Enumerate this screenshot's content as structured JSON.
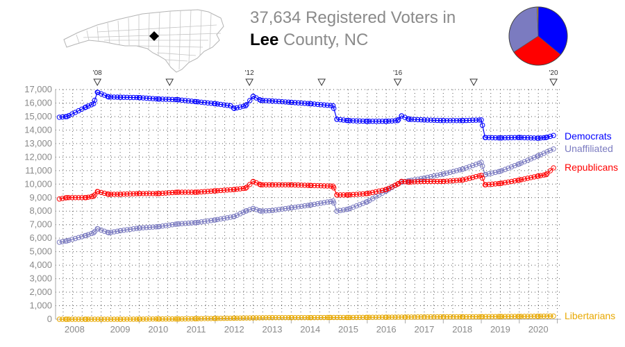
{
  "title": {
    "line1": "37,634 Registered Voters in",
    "county": "Lee",
    "line2_rest": " County, NC"
  },
  "map": {
    "icon": "north-carolina-counties-map-icon",
    "marker": "lee-county-marker-icon"
  },
  "pie": {
    "slices": [
      {
        "name": "Democrats",
        "value": 13550,
        "color": "#0000ff"
      },
      {
        "name": "Republicans",
        "value": 11200,
        "color": "#ff0000"
      },
      {
        "name": "Unaffiliated",
        "value": 12650,
        "color": "#7b7bc0"
      },
      {
        "name": "Libertarians",
        "value": 234,
        "color": "#e8a800"
      }
    ]
  },
  "chart_data": {
    "type": "line",
    "xlim": [
      2007.3,
      2020.6
    ],
    "ylim": [
      0,
      17000
    ],
    "y_ticks": [
      0,
      1000,
      2000,
      3000,
      4000,
      5000,
      6000,
      7000,
      8000,
      9000,
      10000,
      11000,
      12000,
      13000,
      14000,
      15000,
      16000,
      17000
    ],
    "y_tick_labels": [
      "0",
      "1,000",
      "2,000",
      "3,000",
      "4,000",
      "5,000",
      "6,000",
      "7,000",
      "8,000",
      "9,000",
      "10,000",
      "11,000",
      "12,000",
      "13,000",
      "14,000",
      "15,000",
      "16,000",
      "17,000"
    ],
    "x_tick_labels": [
      {
        "label": "2008",
        "x": 2007.8
      },
      {
        "label": "2009",
        "x": 2009.0
      },
      {
        "label": "2010",
        "x": 2010.0
      },
      {
        "label": "2011",
        "x": 2011.0
      },
      {
        "label": "2012",
        "x": 2012.0
      },
      {
        "label": "2013",
        "x": 2013.0
      },
      {
        "label": "2014",
        "x": 2014.0
      },
      {
        "label": "2015",
        "x": 2015.0
      },
      {
        "label": "2016",
        "x": 2016.0
      },
      {
        "label": "2017",
        "x": 2017.0
      },
      {
        "label": "2018",
        "x": 2018.0
      },
      {
        "label": "2019",
        "x": 2019.0
      },
      {
        "label": "2020",
        "x": 2020.0
      }
    ],
    "election_markers": [
      {
        "label": "'08",
        "x": 2008.4
      },
      {
        "label": "",
        "x": 2010.3
      },
      {
        "label": "'12",
        "x": 2012.4
      },
      {
        "label": "",
        "x": 2014.3
      },
      {
        "label": "'16",
        "x": 2016.3
      },
      {
        "label": "",
        "x": 2018.3
      },
      {
        "label": "'20",
        "x": 2020.4
      }
    ],
    "grid": true,
    "legend_placement": "right",
    "series": [
      {
        "name": "Democrats",
        "color": "#0000ff",
        "x": [
          2007.4,
          2007.6,
          2008.1,
          2008.3,
          2008.4,
          2008.7,
          2009.0,
          2009.5,
          2010.0,
          2010.5,
          2011.0,
          2011.5,
          2011.9,
          2012.0,
          2012.3,
          2012.5,
          2012.7,
          2013.0,
          2013.5,
          2014.0,
          2014.6,
          2014.7,
          2015.0,
          2015.5,
          2016.0,
          2016.3,
          2016.4,
          2016.6,
          2017.0,
          2017.5,
          2018.0,
          2018.5,
          2018.6,
          2019.0,
          2019.5,
          2020.0,
          2020.2,
          2020.4
        ],
        "y": [
          14950,
          15000,
          15700,
          15950,
          16800,
          16450,
          16430,
          16400,
          16300,
          16250,
          16100,
          15950,
          15800,
          15600,
          15800,
          16500,
          16200,
          16150,
          16050,
          15950,
          15800,
          14800,
          14700,
          14650,
          14650,
          14700,
          15050,
          14800,
          14750,
          14700,
          14700,
          14750,
          13450,
          13420,
          13450,
          13400,
          13450,
          13600
        ]
      },
      {
        "name": "Unaffiliated",
        "color": "#7b7bc0",
        "x": [
          2007.4,
          2007.6,
          2008.1,
          2008.3,
          2008.4,
          2008.7,
          2009.0,
          2009.5,
          2010.0,
          2010.5,
          2011.0,
          2011.5,
          2012.0,
          2012.3,
          2012.5,
          2012.7,
          2013.0,
          2013.5,
          2014.0,
          2014.6,
          2014.7,
          2015.0,
          2015.5,
          2016.0,
          2016.3,
          2016.4,
          2016.6,
          2017.0,
          2017.5,
          2018.0,
          2018.5,
          2018.6,
          2019.0,
          2019.5,
          2020.0,
          2020.4
        ],
        "y": [
          5700,
          5800,
          6200,
          6400,
          6700,
          6400,
          6550,
          6750,
          6850,
          7050,
          7150,
          7350,
          7600,
          8000,
          8200,
          8000,
          8050,
          8250,
          8450,
          8750,
          8000,
          8150,
          8700,
          9500,
          10000,
          10150,
          10250,
          10450,
          10750,
          11100,
          11600,
          10700,
          10950,
          11500,
          12100,
          12600
        ]
      },
      {
        "name": "Republicans",
        "color": "#ff0000",
        "x": [
          2007.4,
          2007.6,
          2008.1,
          2008.3,
          2008.4,
          2008.7,
          2009.0,
          2009.5,
          2010.0,
          2010.5,
          2011.0,
          2011.5,
          2012.0,
          2012.3,
          2012.5,
          2012.7,
          2013.0,
          2013.5,
          2014.0,
          2014.6,
          2014.7,
          2015.0,
          2015.5,
          2016.0,
          2016.3,
          2016.4,
          2016.6,
          2017.0,
          2017.5,
          2018.0,
          2018.5,
          2018.6,
          2019.0,
          2019.5,
          2020.0,
          2020.2,
          2020.4
        ],
        "y": [
          8900,
          9000,
          9000,
          9100,
          9450,
          9250,
          9250,
          9300,
          9300,
          9400,
          9400,
          9500,
          9600,
          9700,
          10200,
          9950,
          9950,
          9950,
          9900,
          9850,
          9200,
          9200,
          9300,
          9600,
          10000,
          10200,
          10150,
          10200,
          10200,
          10300,
          10650,
          9950,
          10050,
          10300,
          10600,
          10700,
          11200
        ]
      },
      {
        "name": "Libertarians",
        "color": "#e8a800",
        "x": [
          2007.4,
          2007.6,
          2008.1,
          2008.5,
          2009.0,
          2009.5,
          2010.0,
          2010.5,
          2011.0,
          2011.5,
          2012.0,
          2012.5,
          2013.0,
          2013.5,
          2014.0,
          2014.5,
          2015.0,
          2015.5,
          2016.0,
          2016.5,
          2017.0,
          2017.5,
          2018.0,
          2018.5,
          2019.0,
          2019.5,
          2020.0,
          2020.4
        ],
        "y": [
          0,
          0,
          0,
          0,
          0,
          10,
          20,
          20,
          40,
          60,
          80,
          100,
          120,
          120,
          120,
          130,
          130,
          140,
          150,
          160,
          170,
          180,
          180,
          190,
          200,
          210,
          220,
          234
        ]
      }
    ]
  }
}
